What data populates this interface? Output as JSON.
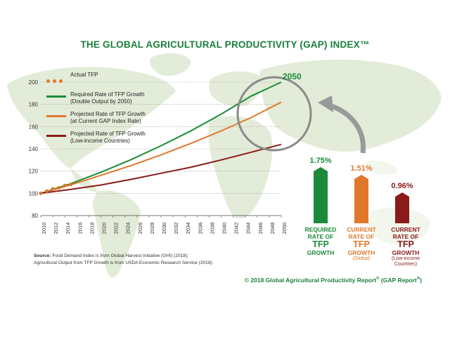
{
  "title": "THE GLOBAL AGRICULTURAL PRODUCTIVITY (GAP) INDEX™",
  "colors": {
    "green": "#1b8b3a",
    "orange": "#e0782c",
    "darkred": "#8b1a1a",
    "actual": "#e0782c",
    "map": "#dfead2",
    "grid": "#9aa38f",
    "gray_arrow": "#9a9a9a"
  },
  "chart_data": {
    "type": "line",
    "x_ticks": [
      2010,
      2012,
      2014,
      2016,
      2018,
      2020,
      2022,
      2024,
      2026,
      2028,
      2030,
      2032,
      2034,
      2036,
      2038,
      2040,
      2042,
      2044,
      2046,
      2048,
      2050
    ],
    "y_ticks": [
      80,
      100,
      120,
      140,
      160,
      180,
      200
    ],
    "xlim": [
      2010,
      2050
    ],
    "ylim": [
      80,
      200
    ],
    "annotation": "2050",
    "series": [
      {
        "name": "Actual TFP",
        "style": "dots",
        "x": [
          2010,
          2011,
          2012,
          2013,
          2014,
          2015
        ],
        "y": [
          100,
          102,
          104,
          105,
          107,
          108
        ]
      },
      {
        "name": "Required Rate of TFP Growth (Double Output by 2050)",
        "x": [
          2010,
          2015,
          2020,
          2025,
          2030,
          2035,
          2040,
          2045,
          2050
        ],
        "y": [
          100,
          108.7,
          119.0,
          130.3,
          142.8,
          156.3,
          171.2,
          187.5,
          200
        ]
      },
      {
        "name": "Projected Rate of TFP Growth (at Current GAP Index Rate)",
        "x": [
          2010,
          2015,
          2020,
          2025,
          2030,
          2035,
          2040,
          2045,
          2050
        ],
        "y": [
          100,
          107.6,
          116.2,
          125.0,
          134.6,
          145.0,
          156.1,
          168.2,
          182
        ]
      },
      {
        "name": "Projected Rate of TFP Growth (Low-income Countries)",
        "x": [
          2010,
          2015,
          2020,
          2025,
          2030,
          2035,
          2040,
          2045,
          2050
        ],
        "y": [
          100,
          103.5,
          107.5,
          112.5,
          118.0,
          123.5,
          130.0,
          137.0,
          144
        ]
      }
    ],
    "bars": [
      {
        "value": 1.75,
        "label": "1.75%"
      },
      {
        "value": 1.51,
        "label": "1.51%"
      },
      {
        "value": 0.96,
        "label": "0.96%"
      }
    ]
  },
  "legend": [
    {
      "line1": "Actual TFP",
      "line2": ""
    },
    {
      "line1": "Required Rate of TFP Growth",
      "line2": "(Double Output by 2050)"
    },
    {
      "line1": "Projected Rate of TFP Growth",
      "line2": "(at Current GAP Index Rate)"
    },
    {
      "line1": "Projected Rate of TFP Growth",
      "line2": "(Low-income Countries)"
    }
  ],
  "bar_labels": [
    {
      "l1": "REQUIRED",
      "l2": "RATE OF",
      "big": "TFP",
      "l3": "GROWTH",
      "sub1": "",
      "sub2": ""
    },
    {
      "l1": "CURRENT",
      "l2": "RATE OF",
      "big": "TFP",
      "l3": "GROWTH",
      "sub1": "(Global)",
      "sub2": ""
    },
    {
      "l1": "CURRENT",
      "l2": "RATE OF",
      "big": "TFP",
      "l3": "GROWTH",
      "sub1": "(Low-income",
      "sub2": "Countries)"
    }
  ],
  "source": {
    "label": "Source:",
    "line1": " Food Demand Index is from Global Harvest Initiative (GHI) (2018);",
    "line2": "Agricultural Output from TFP Growth is from USDA Economic Research Service (2018)."
  },
  "copyright": {
    "prefix": "© 2018 Global Agricultural Productivity Report",
    "mid": " (GAP Report",
    "suffix": ")"
  }
}
